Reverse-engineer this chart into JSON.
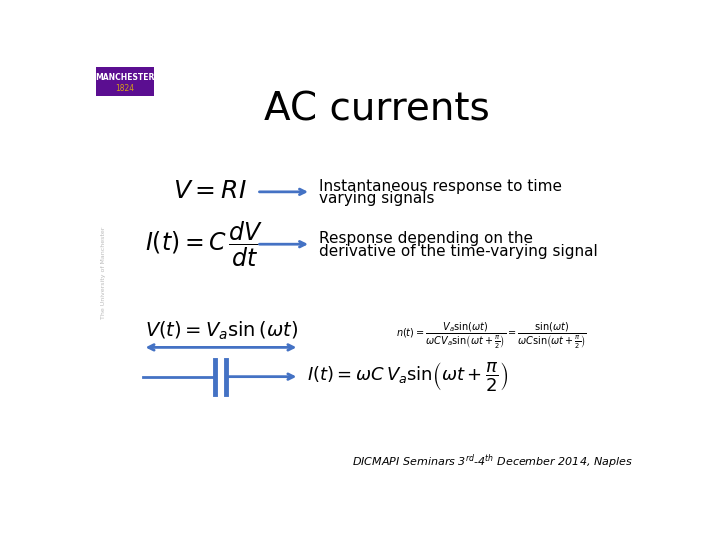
{
  "title": "AC currents",
  "title_fontsize": 28,
  "title_color": "#000000",
  "bg_color": "#ffffff",
  "eq1_latex": "$\\mathit{V} = \\mathit{RI}$",
  "eq2_latex": "$\\mathit{I}(\\mathit{t}) = \\mathit{C}\\,\\dfrac{d\\mathit{V}}{d\\mathit{t}}$",
  "eq1_text1": "Instantaneous response to time",
  "eq1_text2": "varying signals",
  "eq2_text1": "Response depending on the",
  "eq2_text2": "derivative of the time-varying signal",
  "eq3_latex": "$\\mathit{V}(\\mathit{t}) = \\mathit{V}_a \\sin\\left(\\omega \\mathit{t}\\right)$",
  "eq4_latex": "$\\mathit{I}(\\mathit{t}) = \\omega \\mathit{C}\\,\\mathit{V}_a \\sin\\!\\left(\\omega \\mathit{t} + \\dfrac{\\pi}{2}\\right)$",
  "eq5_latex": "$n(t) = \\dfrac{V_a\\sin(\\omega t)}{\\omega C V_a\\sin\\!\\left(\\omega t+\\frac{\\pi}{2}\\right)} = \\dfrac{\\sin(\\omega t)}{\\omega C\\sin\\!\\left(\\omega t+\\frac{\\pi}{2}\\right)}$",
  "arrow_color": "#4472C4",
  "arrow_linewidth": 2.0,
  "manchester_box_color": "#5b0e91",
  "manchester_text_color": "#ffffff",
  "manchester_year_color": "#d4a017",
  "footer_text": "DICMAPI Seminars 3$^{rd}$-4$^{th}$ December 2014, Naples",
  "footer_fontsize": 8,
  "footer_color": "#000000",
  "eq_color": "#000000",
  "eq1_fontsize": 18,
  "eq2_fontsize": 17,
  "eq3_fontsize": 14,
  "eq4_fontsize": 13,
  "eq5_fontsize": 7,
  "text_fontsize": 11
}
